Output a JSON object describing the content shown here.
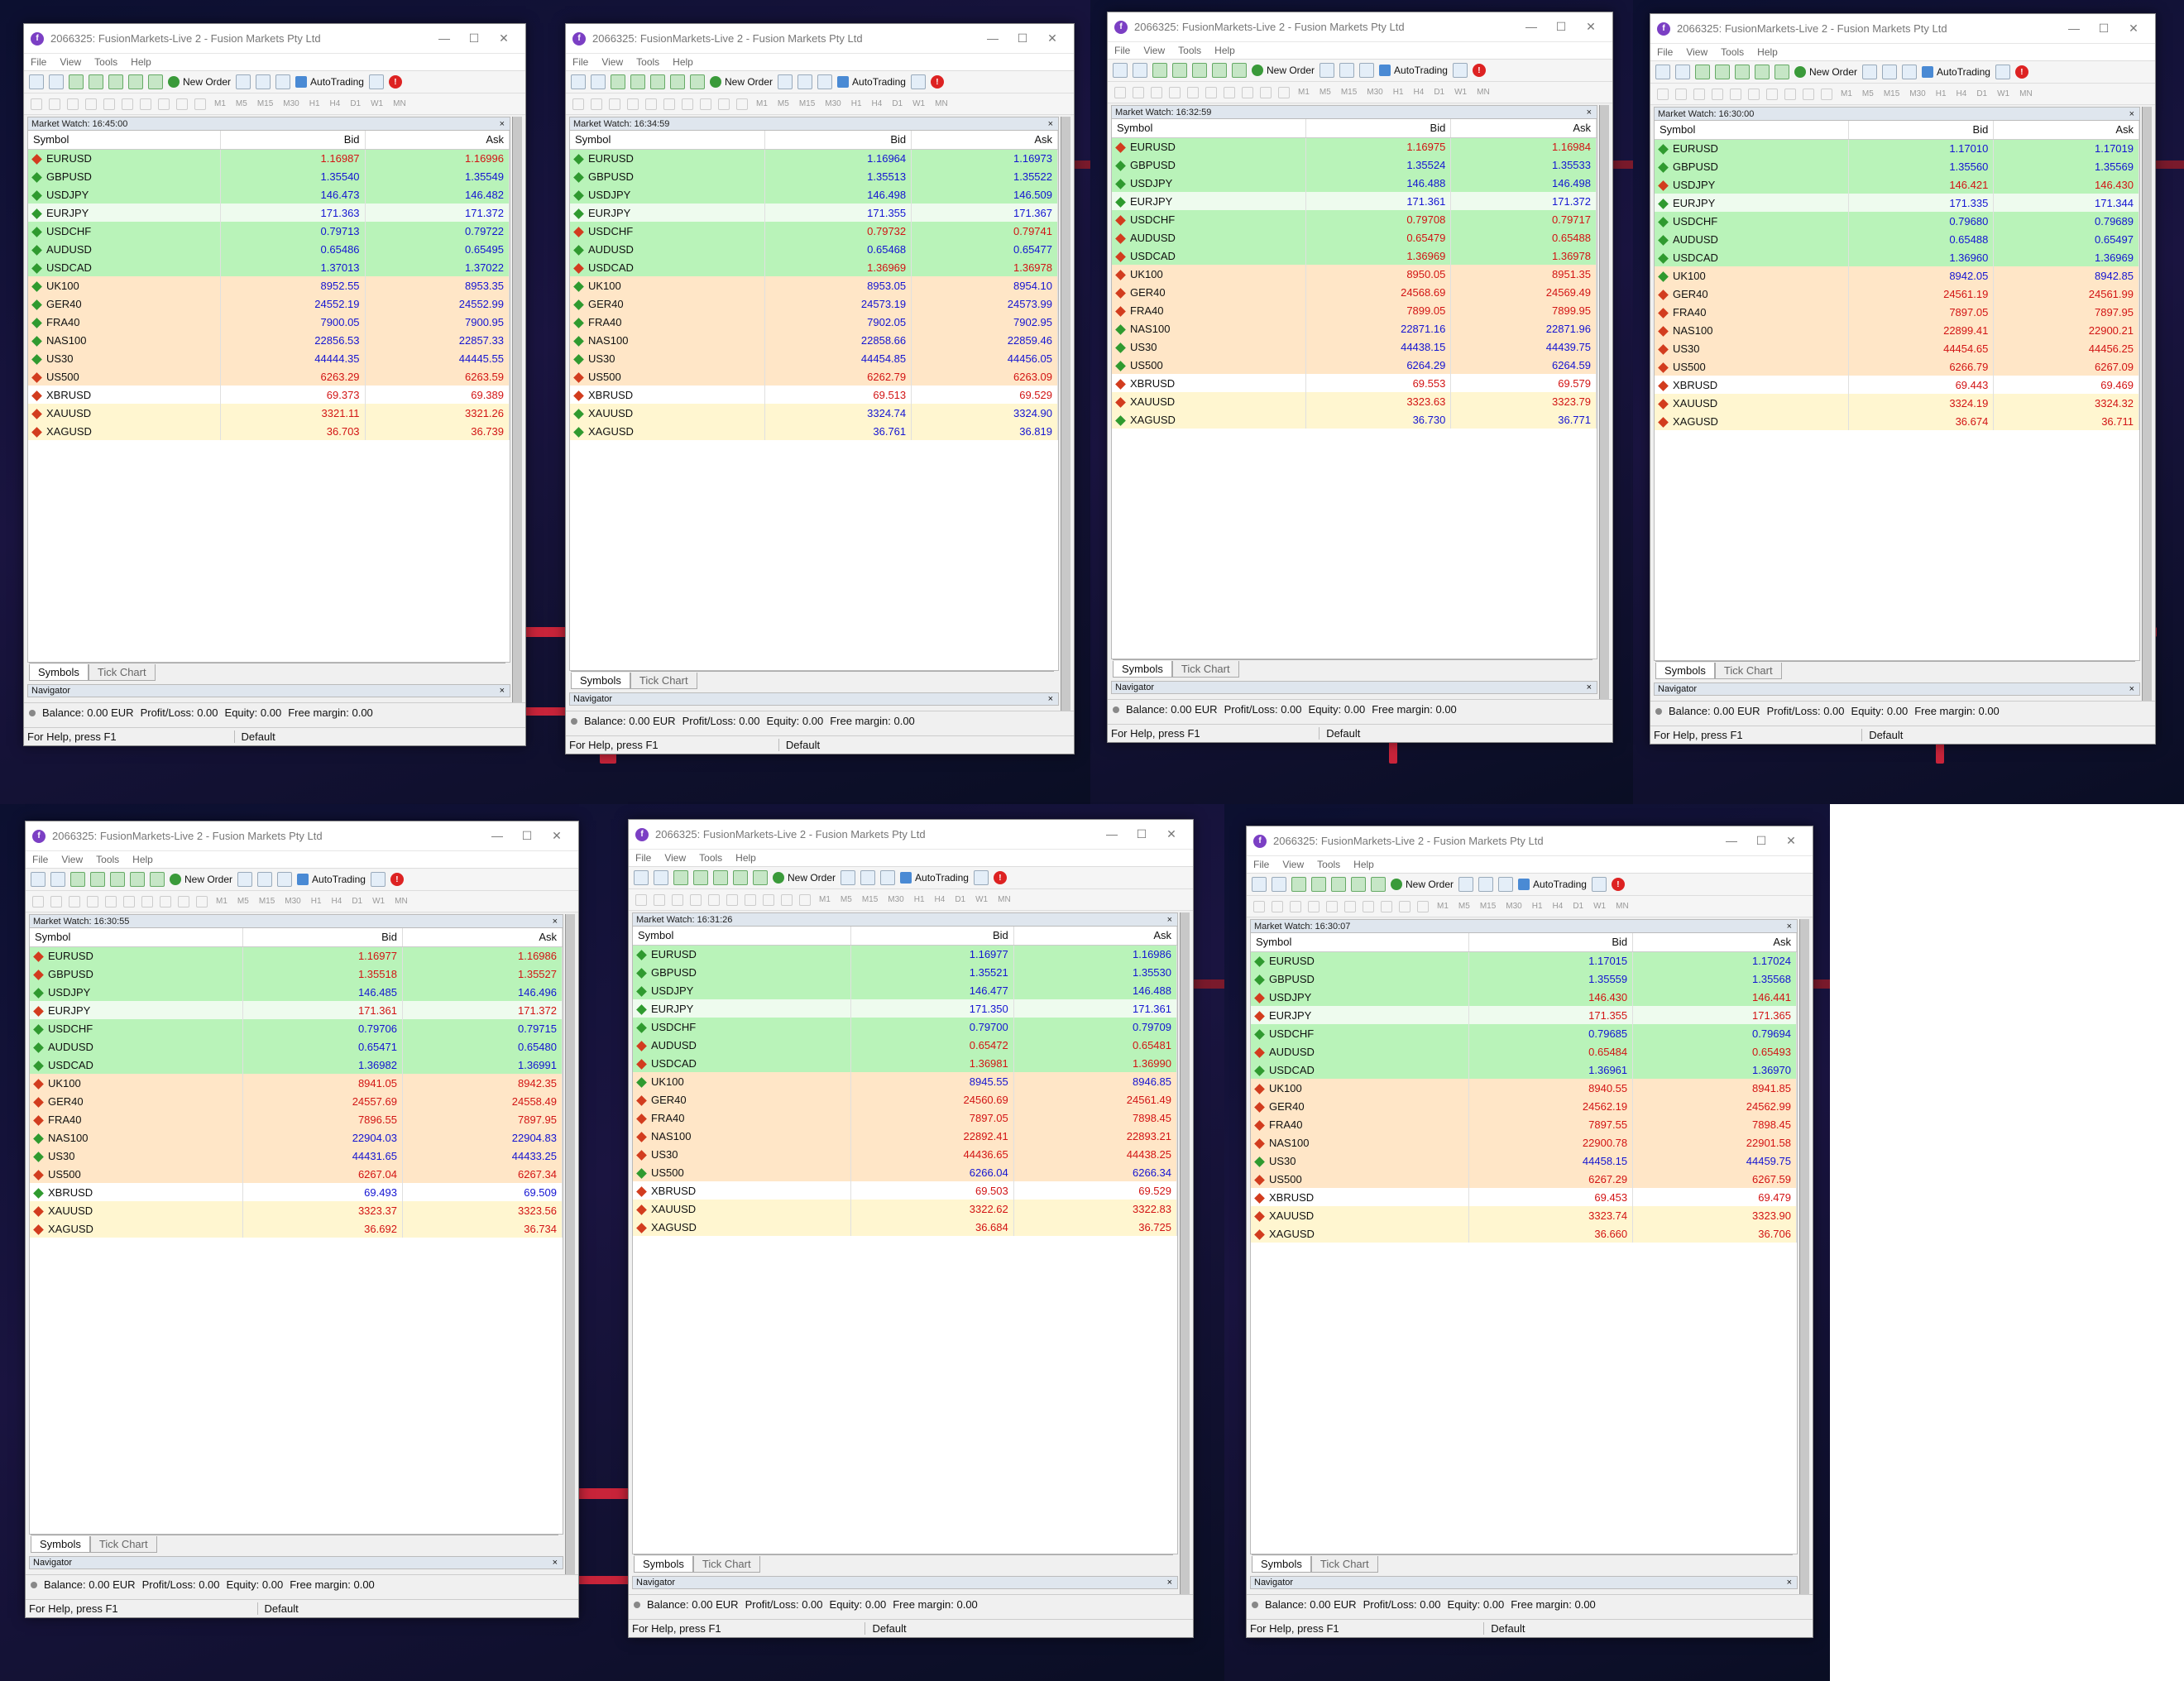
{
  "app": {
    "title": "2066325: FusionMarkets-Live 2 - Fusion Markets Pty Ltd",
    "menu": [
      "File",
      "View",
      "Tools",
      "Help"
    ],
    "new_order": "New Order",
    "auto_trading": "AutoTrading",
    "timeframes": [
      "M1",
      "M5",
      "M15",
      "M30",
      "H1",
      "H4",
      "D1",
      "W1",
      "MN"
    ],
    "col_symbol": "Symbol",
    "col_bid": "Bid",
    "col_ask": "Ask",
    "tab_symbols": "Symbols",
    "tab_tick": "Tick Chart",
    "navigator": "Navigator",
    "balance": "Balance: 0.00 EUR",
    "profit": "Profit/Loss: 0.00",
    "equity": "Equity: 0.00",
    "free_margin": "Free margin: 0.00",
    "status_help": "For Help, press F1",
    "status_profile": "Default",
    "close_x": "×",
    "colors": {
      "up": "#1414d2",
      "down": "#d21414",
      "fx_row": "#b9f3b9",
      "idx_row": "#ffe6c7",
      "met_row": "#fff6d0"
    }
  },
  "symbols": [
    "EURUSD",
    "GBPUSD",
    "USDJPY",
    "EURJPY",
    "USDCHF",
    "AUDUSD",
    "USDCAD",
    "UK100",
    "GER40",
    "FRA40",
    "NAS100",
    "US30",
    "US500",
    "XBRUSD",
    "XAUUSD",
    "XAGUSD"
  ],
  "windows": [
    {
      "mw_label": "Market Watch: 16:45:00",
      "bids": [
        "1.16987",
        "1.35540",
        "146.473",
        "171.363",
        "0.79713",
        "0.65486",
        "1.37013",
        "8952.55",
        "24552.19",
        "7900.05",
        "22856.53",
        "44444.35",
        "6263.29",
        "69.373",
        "3321.11",
        "36.703"
      ],
      "asks": [
        "1.16996",
        "1.35549",
        "146.482",
        "171.372",
        "0.79722",
        "0.65495",
        "1.37022",
        "8953.35",
        "24552.99",
        "7900.95",
        "22857.33",
        "44445.55",
        "6263.59",
        "69.389",
        "3321.26",
        "36.739"
      ],
      "dirs": [
        "d",
        "u",
        "u",
        "u",
        "u",
        "u",
        "u",
        "u",
        "u",
        "u",
        "u",
        "u",
        "d",
        "d",
        "d",
        "d"
      ]
    },
    {
      "mw_label": "Market Watch: 16:34:59",
      "bids": [
        "1.16964",
        "1.35513",
        "146.498",
        "171.355",
        "0.79732",
        "0.65468",
        "1.36969",
        "8953.05",
        "24573.19",
        "7902.05",
        "22858.66",
        "44454.85",
        "6262.79",
        "69.513",
        "3324.74",
        "36.761"
      ],
      "asks": [
        "1.16973",
        "1.35522",
        "146.509",
        "171.367",
        "0.79741",
        "0.65477",
        "1.36978",
        "8954.10",
        "24573.99",
        "7902.95",
        "22859.46",
        "44456.05",
        "6263.09",
        "69.529",
        "3324.90",
        "36.819"
      ],
      "dirs": [
        "u",
        "u",
        "u",
        "u",
        "d",
        "u",
        "d",
        "u",
        "u",
        "u",
        "u",
        "u",
        "d",
        "d",
        "u",
        "u"
      ]
    },
    {
      "mw_label": "Market Watch: 16:32:59",
      "bids": [
        "1.16975",
        "1.35524",
        "146.488",
        "171.361",
        "0.79708",
        "0.65479",
        "1.36969",
        "8950.05",
        "24568.69",
        "7899.05",
        "22871.16",
        "44438.15",
        "6264.29",
        "69.553",
        "3323.63",
        "36.730"
      ],
      "asks": [
        "1.16984",
        "1.35533",
        "146.498",
        "171.372",
        "0.79717",
        "0.65488",
        "1.36978",
        "8951.35",
        "24569.49",
        "7899.95",
        "22871.96",
        "44439.75",
        "6264.59",
        "69.579",
        "3323.79",
        "36.771"
      ],
      "dirs": [
        "d",
        "u",
        "u",
        "u",
        "d",
        "d",
        "d",
        "d",
        "d",
        "d",
        "u",
        "u",
        "u",
        "d",
        "d",
        "u"
      ]
    },
    {
      "mw_label": "Market Watch: 16:30:00",
      "bids": [
        "1.17010",
        "1.35560",
        "146.421",
        "171.335",
        "0.79680",
        "0.65488",
        "1.36960",
        "8942.05",
        "24561.19",
        "7897.05",
        "22899.41",
        "44454.65",
        "6266.79",
        "69.443",
        "3324.19",
        "36.674"
      ],
      "asks": [
        "1.17019",
        "1.35569",
        "146.430",
        "171.344",
        "0.79689",
        "0.65497",
        "1.36969",
        "8942.85",
        "24561.99",
        "7897.95",
        "22900.21",
        "44456.25",
        "6267.09",
        "69.469",
        "3324.32",
        "36.711"
      ],
      "dirs": [
        "u",
        "u",
        "d",
        "u",
        "u",
        "u",
        "u",
        "u",
        "d",
        "d",
        "d",
        "d",
        "d",
        "d",
        "d",
        "d"
      ]
    },
    {
      "mw_label": "Market Watch: 16:30:55",
      "bids": [
        "1.16977",
        "1.35518",
        "146.485",
        "171.361",
        "0.79706",
        "0.65471",
        "1.36982",
        "8941.05",
        "24557.69",
        "7896.55",
        "22904.03",
        "44431.65",
        "6267.04",
        "69.493",
        "3323.37",
        "36.692"
      ],
      "asks": [
        "1.16986",
        "1.35527",
        "146.496",
        "171.372",
        "0.79715",
        "0.65480",
        "1.36991",
        "8942.35",
        "24558.49",
        "7897.95",
        "22904.83",
        "44433.25",
        "6267.34",
        "69.509",
        "3323.56",
        "36.734"
      ],
      "dirs": [
        "d",
        "d",
        "u",
        "d",
        "u",
        "u",
        "u",
        "d",
        "d",
        "d",
        "u",
        "u",
        "d",
        "u",
        "d",
        "d"
      ]
    },
    {
      "mw_label": "Market Watch: 16:31:26",
      "bids": [
        "1.16977",
        "1.35521",
        "146.477",
        "171.350",
        "0.79700",
        "0.65472",
        "1.36981",
        "8945.55",
        "24560.69",
        "7897.05",
        "22892.41",
        "44436.65",
        "6266.04",
        "69.503",
        "3322.62",
        "36.684"
      ],
      "asks": [
        "1.16986",
        "1.35530",
        "146.488",
        "171.361",
        "0.79709",
        "0.65481",
        "1.36990",
        "8946.85",
        "24561.49",
        "7898.45",
        "22893.21",
        "44438.25",
        "6266.34",
        "69.529",
        "3322.83",
        "36.725"
      ],
      "dirs": [
        "u",
        "u",
        "u",
        "u",
        "u",
        "d",
        "d",
        "u",
        "d",
        "d",
        "d",
        "d",
        "u",
        "d",
        "d",
        "d"
      ]
    },
    {
      "mw_label": "Market Watch: 16:30:07",
      "bids": [
        "1.17015",
        "1.35559",
        "146.430",
        "171.355",
        "0.79685",
        "0.65484",
        "1.36961",
        "8940.55",
        "24562.19",
        "7897.55",
        "22900.78",
        "44458.15",
        "6267.29",
        "69.453",
        "3323.74",
        "36.660"
      ],
      "asks": [
        "1.17024",
        "1.35568",
        "146.441",
        "171.365",
        "0.79694",
        "0.65493",
        "1.36970",
        "8941.85",
        "24562.99",
        "7898.45",
        "22901.58",
        "44459.75",
        "6267.59",
        "69.479",
        "3323.90",
        "36.706"
      ],
      "dirs": [
        "u",
        "u",
        "d",
        "d",
        "u",
        "d",
        "u",
        "d",
        "d",
        "d",
        "d",
        "u",
        "d",
        "d",
        "d",
        "d"
      ]
    }
  ]
}
